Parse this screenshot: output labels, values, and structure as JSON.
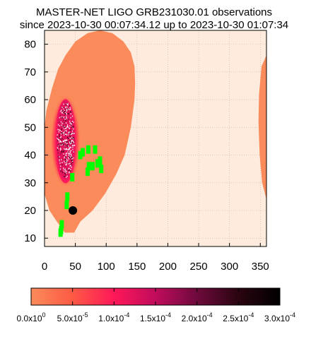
{
  "chart_data": {
    "type": "heatmap",
    "title": "MASTER-NET LIGO GRB231030.01 observations",
    "subtitle": "since 2023-10-30 00:07:34.12 up to 2023-10-30 01:07:34",
    "xlabel": "",
    "ylabel": "",
    "xlim": [
      0,
      360
    ],
    "ylim": [
      7,
      85
    ],
    "x_ticks": [
      "0",
      "50",
      "100",
      "150",
      "200",
      "250",
      "300",
      "350"
    ],
    "y_ticks": [
      "10",
      "20",
      "30",
      "40",
      "50",
      "60",
      "70",
      "80"
    ],
    "x_tick_values": [
      0,
      50,
      100,
      150,
      200,
      250,
      300,
      350
    ],
    "y_tick_values": [
      10,
      20,
      30,
      40,
      50,
      60,
      70,
      80
    ],
    "grid": true,
    "colorscale": {
      "min": 0,
      "max": 0.0003,
      "tick_labels": [
        "0.0x10",
        "5.0x10",
        "1.0x10",
        "1.5x10",
        "2.0x10",
        "2.5x10",
        "3.0x10"
      ],
      "tick_exponents": [
        "0",
        "-5",
        "-4",
        "-4",
        "-4",
        "-4",
        "-4"
      ],
      "colors": [
        "#fb8b5a",
        "#fd5a45",
        "#ff1858",
        "#c00c5c",
        "#6e0a3c",
        "#2a0510",
        "#000000"
      ]
    },
    "probability_region_main": {
      "polygon": [
        [
          48,
          12
        ],
        [
          58,
          16
        ],
        [
          78,
          20
        ],
        [
          98,
          26
        ],
        [
          116,
          33
        ],
        [
          130,
          40
        ],
        [
          140,
          50
        ],
        [
          146,
          60
        ],
        [
          147,
          66
        ],
        [
          146,
          72
        ],
        [
          140,
          77
        ],
        [
          128,
          81
        ],
        [
          110,
          84
        ],
        [
          90,
          85
        ],
        [
          70,
          84
        ],
        [
          50,
          81
        ],
        [
          34,
          76
        ],
        [
          22,
          71
        ],
        [
          12,
          64
        ],
        [
          3,
          56
        ],
        [
          0,
          50
        ],
        [
          0,
          26
        ],
        [
          8,
          20
        ],
        [
          20,
          16
        ],
        [
          33,
          12
        ]
      ],
      "color": "#fb8b5a"
    },
    "probability_region_wrap": {
      "polygon": [
        [
          360,
          76
        ],
        [
          352,
          72
        ],
        [
          348,
          62
        ],
        [
          347,
          52
        ],
        [
          349,
          40
        ],
        [
          353,
          30
        ],
        [
          360,
          24
        ]
      ],
      "color": "#fb8b5a"
    },
    "hotspot": {
      "center": [
        34,
        45
      ],
      "radius": [
        18,
        16
      ],
      "core_radius": [
        11,
        11
      ]
    },
    "observation_fields": [
      [
        36,
        22
      ],
      [
        37,
        25
      ],
      [
        26,
        12
      ],
      [
        27,
        13
      ],
      [
        28,
        15
      ],
      [
        45,
        32
      ],
      [
        58,
        40
      ],
      [
        62,
        41
      ],
      [
        71,
        42
      ],
      [
        82,
        42
      ],
      [
        72,
        36
      ],
      [
        78,
        36
      ],
      [
        86,
        37
      ],
      [
        90,
        38
      ],
      [
        92,
        35
      ],
      [
        70,
        34
      ]
    ],
    "observation_field_color": "#00ff00",
    "marker": {
      "x": 46,
      "y": 20,
      "color": "#000000"
    },
    "background_color": "#feebdd"
  }
}
